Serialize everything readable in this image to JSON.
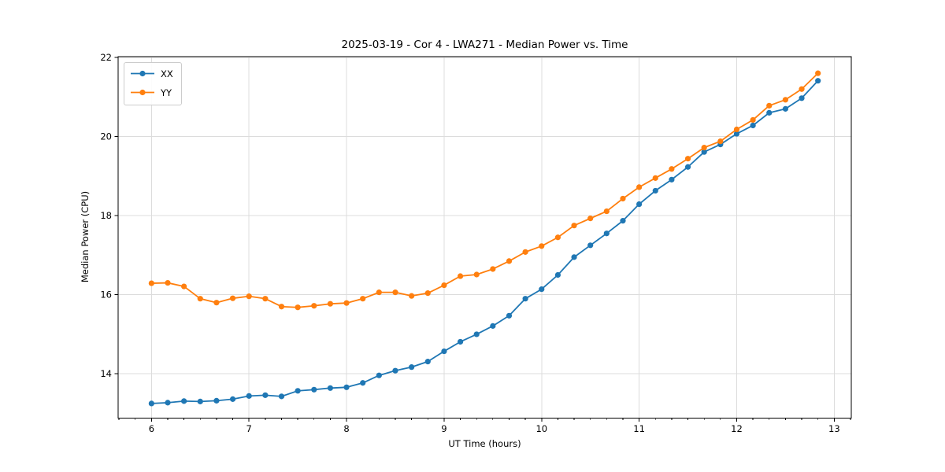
{
  "chart_data": {
    "type": "line",
    "title": "2025-03-19 - Cor 4 - LWA271 - Median Power vs. Time",
    "xlabel": "UT Time (hours)",
    "ylabel": "Median Power (CPU)",
    "xlim": [
      5.658,
      13.175
    ],
    "ylim": [
      12.88,
      22.02
    ],
    "xticks": [
      6,
      7,
      8,
      9,
      10,
      11,
      12,
      13
    ],
    "yticks": [
      14,
      16,
      18,
      20,
      22
    ],
    "x_minor_step": 0.1666667,
    "grid": true,
    "grid_color": "#dcdcdc",
    "legend_position": "upper left",
    "x": [
      6.0,
      6.1667,
      6.3333,
      6.5,
      6.6667,
      6.8333,
      7.0,
      7.1667,
      7.3333,
      7.5,
      7.6667,
      7.8333,
      8.0,
      8.1667,
      8.3333,
      8.5,
      8.6667,
      8.8333,
      9.0,
      9.1667,
      9.3333,
      9.5,
      9.6667,
      9.8333,
      10.0,
      10.1667,
      10.3333,
      10.5,
      10.6667,
      10.8333,
      11.0,
      11.1667,
      11.3333,
      11.5,
      11.6667,
      11.8333,
      12.0,
      12.1667,
      12.3333,
      12.5,
      12.6667,
      12.8333
    ],
    "series": [
      {
        "name": "XX",
        "color": "#1f77b4",
        "values": [
          13.25,
          13.27,
          13.31,
          13.3,
          13.32,
          13.36,
          13.44,
          13.46,
          13.43,
          13.57,
          13.6,
          13.64,
          13.66,
          13.77,
          13.96,
          14.08,
          14.17,
          14.31,
          14.57,
          14.81,
          15.0,
          15.21,
          15.47,
          15.9,
          16.14,
          16.5,
          16.95,
          17.25,
          17.55,
          17.87,
          18.29,
          18.63,
          18.91,
          19.23,
          19.61,
          19.8,
          20.07,
          20.28,
          20.6,
          20.7,
          20.97,
          21.41
        ]
      },
      {
        "name": "YY",
        "color": "#ff7f0e",
        "values": [
          16.29,
          16.3,
          16.21,
          15.9,
          15.8,
          15.91,
          15.96,
          15.9,
          15.7,
          15.68,
          15.72,
          15.77,
          15.79,
          15.9,
          16.06,
          16.06,
          15.97,
          16.04,
          16.24,
          16.47,
          16.51,
          16.65,
          16.85,
          17.08,
          17.23,
          17.45,
          17.75,
          17.93,
          18.11,
          18.43,
          18.72,
          18.95,
          19.18,
          19.44,
          19.72,
          19.88,
          20.18,
          20.42,
          20.78,
          20.93,
          21.2,
          21.6
        ]
      }
    ]
  }
}
